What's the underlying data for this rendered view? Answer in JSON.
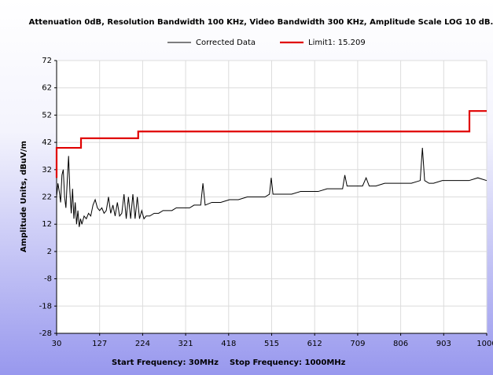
{
  "chart_data": {
    "type": "line",
    "title": "Attenuation 0dB, Resolution Bandwidth 100 KHz, Video Bandwidth 300 KHz, Amplitude Scale LOG 10 dB.",
    "y_label": "Amplitude Units, dBuV/m",
    "x_label_start": "Start Frequency: 30MHz",
    "x_label_stop": "Stop Frequency: 1000MHz",
    "xlim": [
      30,
      1000
    ],
    "xticks": [
      30,
      127,
      224,
      321,
      418,
      515,
      612,
      709,
      806,
      903,
      1000
    ],
    "ylim": [
      -28,
      72
    ],
    "yticks": [
      -28,
      -18,
      -8,
      2,
      12,
      22,
      32,
      42,
      52,
      62,
      72
    ],
    "grid": true,
    "legend": "top",
    "series": [
      {
        "name": "Corrected Data",
        "color": "#000000",
        "x": [
          30,
          33,
          36,
          39,
          42,
          45,
          48,
          51,
          54,
          57,
          60,
          63,
          66,
          69,
          72,
          75,
          78,
          81,
          84,
          87,
          92,
          97,
          102,
          107,
          112,
          117,
          122,
          127,
          132,
          137,
          142,
          147,
          152,
          157,
          162,
          167,
          172,
          177,
          182,
          187,
          192,
          197,
          202,
          207,
          212,
          217,
          222,
          227,
          232,
          240,
          250,
          260,
          270,
          280,
          290,
          300,
          310,
          320,
          330,
          340,
          350,
          355,
          360,
          365,
          380,
          400,
          420,
          440,
          460,
          480,
          500,
          510,
          514,
          518,
          540,
          560,
          580,
          600,
          620,
          640,
          660,
          675,
          680,
          685,
          700,
          720,
          728,
          735,
          750,
          770,
          790,
          810,
          830,
          850,
          855,
          860,
          870,
          880,
          900,
          920,
          940,
          960,
          980,
          1000
        ],
        "values": [
          22,
          27,
          24,
          20,
          30,
          32,
          22,
          18,
          28,
          37,
          24,
          16,
          25,
          14,
          20,
          12,
          17,
          11,
          14,
          12,
          15,
          14,
          16,
          15,
          19,
          21,
          18,
          17,
          18,
          16,
          17,
          22,
          16,
          19,
          15,
          20,
          15,
          16,
          23,
          14,
          22,
          14,
          23,
          14,
          22,
          14,
          17,
          14,
          15,
          15,
          16,
          16,
          17,
          17,
          17,
          18,
          18,
          18,
          18,
          19,
          19,
          19,
          27,
          19,
          20,
          20,
          21,
          21,
          22,
          22,
          22,
          23,
          29,
          23,
          23,
          23,
          24,
          24,
          24,
          25,
          25,
          25,
          30,
          26,
          26,
          26,
          29,
          26,
          26,
          27,
          27,
          27,
          27,
          28,
          40,
          28,
          27,
          27,
          28,
          28,
          28,
          28,
          29,
          28
        ]
      },
      {
        "name": "Limit1: 15.209",
        "color": "#e00000",
        "x": [
          30,
          30,
          85,
          85,
          214,
          214,
          961,
          961,
          1000
        ],
        "values": [
          29,
          40,
          40,
          43.5,
          43.5,
          46,
          46,
          53.5,
          53.5
        ]
      }
    ]
  }
}
